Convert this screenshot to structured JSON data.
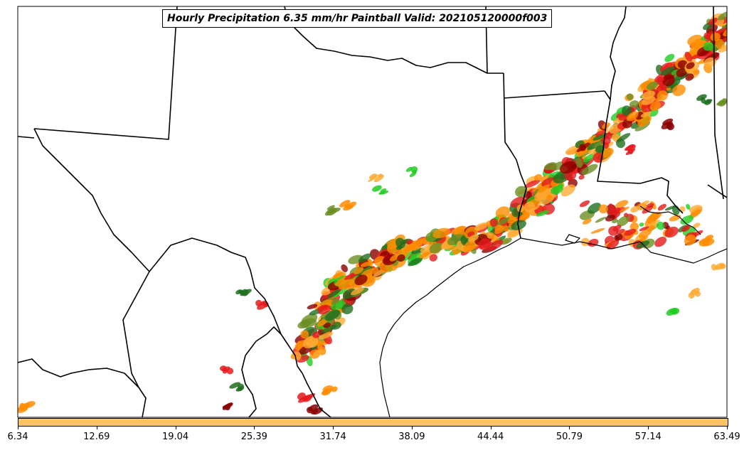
{
  "map": {
    "title": "Hourly Precipitation 6.35 mm/hr Paintball Valid: 202105120000f003",
    "colors": {
      "dark_red": "#8b0000",
      "red": "#e41a1c",
      "orange": "#ff8c00",
      "light_orange": "#ffaa33",
      "olive": "#6b8e23",
      "green": "#22cc22",
      "dark_green": "#1f6f1f"
    }
  },
  "colorbar": {
    "color": "#ffc266",
    "tick_labels": [
      "6.34",
      "12.69",
      "19.04",
      "25.39",
      "31.74",
      "38.09",
      "44.44",
      "50.79",
      "57.14",
      "63.49"
    ]
  }
}
